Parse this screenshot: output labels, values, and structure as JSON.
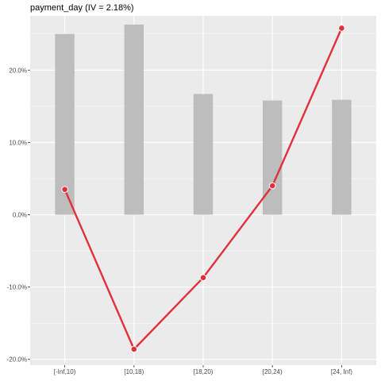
{
  "chart_data": {
    "type": "bar+line",
    "title": "payment_day (IV = 2.18%)",
    "categories": [
      "[-Inf,10)",
      "[10,18)",
      "[18,20)",
      "[20,24)",
      "[24, Inf)"
    ],
    "bar_series": {
      "values": [
        25.0,
        26.3,
        16.7,
        15.8,
        15.9
      ],
      "color": "#bdbdbd"
    },
    "line_series": {
      "values": [
        3.5,
        -18.6,
        -8.7,
        4.0,
        25.8
      ],
      "color": "#e0303a"
    },
    "ylim": [
      -20.8,
      27.5
    ],
    "yticks": [
      -20,
      -10,
      0,
      10,
      20
    ],
    "ytick_labels": [
      "-20.0%",
      "-10.0%",
      "0.0%",
      "10.0%",
      "20.0%"
    ],
    "grid": true,
    "panel_background": "#ebebeb"
  }
}
